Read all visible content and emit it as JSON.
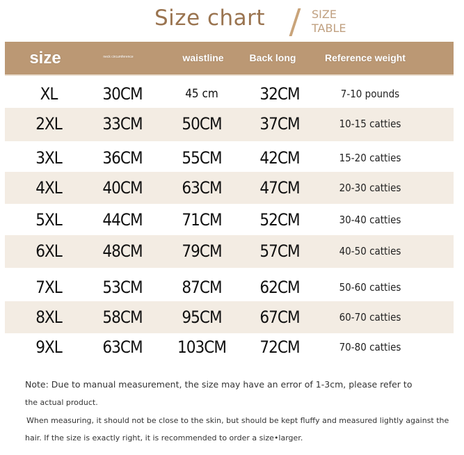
{
  "title": "Size chart",
  "subtitle_line1": "SIZE",
  "subtitle_line2": "TABLE",
  "colors": {
    "header_bg": "#bb9874",
    "band_bg": "#f3ece3",
    "title": "#9a7450"
  },
  "headers": [
    "size",
    "neck circumference",
    "waistline",
    "Back long",
    "Reference weight"
  ],
  "rows": [
    {
      "size": "XL",
      "neck": "30CM",
      "waist": "45 cm",
      "back": "32CM",
      "weight": "7-10 pounds"
    },
    {
      "size": "2XL",
      "neck": "33CM",
      "waist": "50CM",
      "back": "37CM",
      "weight": "10-15 catties"
    },
    {
      "size": "3XL",
      "neck": "36CM",
      "waist": "55CM",
      "back": "42CM",
      "weight": "15-20 catties"
    },
    {
      "size": "4XL",
      "neck": "40CM",
      "waist": "63CM",
      "back": "47CM",
      "weight": "20-30 catties"
    },
    {
      "size": "5XL",
      "neck": "44CM",
      "waist": "71CM",
      "back": "52CM",
      "weight": "30-40 catties"
    },
    {
      "size": "6XL",
      "neck": "48CM",
      "waist": "79CM",
      "back": "57CM",
      "weight": "40-50 catties"
    },
    {
      "size": "7XL",
      "neck": "53CM",
      "waist": "87CM",
      "back": "62CM",
      "weight": "50-60 catties"
    },
    {
      "size": "8XL",
      "neck": "58CM",
      "waist": "95CM",
      "back": "67CM",
      "weight": "60-70 catties"
    },
    {
      "size": "9XL",
      "neck": "63CM",
      "waist": "103CM",
      "back": "72CM",
      "weight": "70-80 catties"
    }
  ],
  "notes": [
    "Note: Due to manual measurement, the size may have an error of 1-3cm, please refer to",
    "the actual product.",
    "When measuring, it should not be close to the skin, but should be kept fluffy and measured lightly against the",
    "hair. If the size is exactly right, it is recommended to order a size•larger."
  ]
}
